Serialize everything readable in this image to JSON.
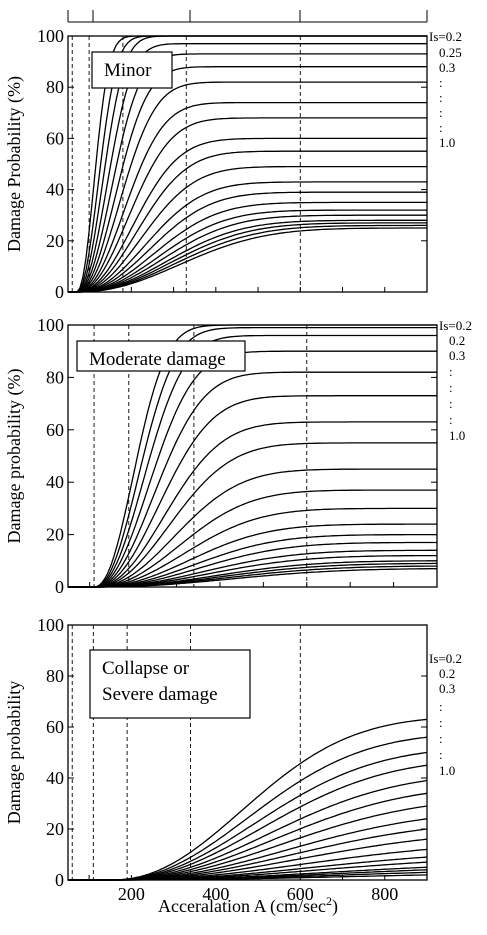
{
  "chart_data": [
    {
      "type": "line",
      "panel": "minor",
      "label_box": [
        "Minor"
      ],
      "ylabel": "Damage Probability (%)",
      "xlim": [
        50,
        900
      ],
      "ylim": [
        0,
        100
      ],
      "x_ticks": [],
      "y_ticks": [
        "0",
        "20",
        "40",
        "60",
        "80",
        "100"
      ],
      "x_markers": [
        60,
        100,
        180,
        330,
        600
      ],
      "top_strip_marks": [
        "v",
        "v",
        "v",
        "v",
        "v"
      ],
      "is_labels": [
        "Is=0.2",
        "0.25",
        "0.3",
        ":",
        ":",
        ":",
        ":",
        "1.0"
      ],
      "series_values_at_900": [
        100,
        100,
        99,
        97,
        93,
        88,
        82,
        74,
        68,
        60,
        55,
        49,
        43,
        39,
        35,
        32,
        30,
        28,
        27,
        26,
        25
      ]
    },
    {
      "type": "line",
      "panel": "moderate",
      "label_box": [
        "Moderate damage"
      ],
      "ylabel": "Damage probability (%)",
      "xlim": [
        50,
        900
      ],
      "ylim": [
        0,
        100
      ],
      "x_ticks": [],
      "y_ticks": [
        "0",
        "20",
        "40",
        "60",
        "80",
        "100"
      ],
      "x_markers": [
        110,
        190,
        340,
        600
      ],
      "is_labels": [
        "Is=0.2",
        "0.2",
        "0.3",
        ":",
        ":",
        ":",
        ":",
        "1.0"
      ],
      "series_values_at_900": [
        100,
        99,
        96,
        90,
        82,
        73,
        63,
        55,
        45,
        37,
        30,
        24,
        20,
        17,
        14,
        12,
        10,
        9,
        8,
        7
      ]
    },
    {
      "type": "line",
      "panel": "collapse",
      "label_box": [
        "Collapse or",
        "Severe damage"
      ],
      "ylabel": "Damage probability",
      "xlabel": "Acceralation A (cm/sec",
      "xlabel_sup": "2",
      "xlabel_end": ")",
      "xlim": [
        50,
        900
      ],
      "ylim": [
        0,
        100
      ],
      "x_ticks": [
        "200",
        "400",
        "600",
        "800"
      ],
      "y_ticks": [
        "0",
        "20",
        "40",
        "60",
        "80",
        "100"
      ],
      "x_markers": [
        60,
        110,
        190,
        340,
        600
      ],
      "is_labels": [
        "Is=0.2",
        "0.2",
        "0.3",
        ":",
        ":",
        ":",
        ":",
        "1.0"
      ],
      "series_values_at_900": [
        63,
        56,
        50,
        45,
        39,
        34,
        29,
        24,
        20,
        16,
        12,
        9,
        7,
        5,
        4,
        3,
        2
      ]
    }
  ]
}
